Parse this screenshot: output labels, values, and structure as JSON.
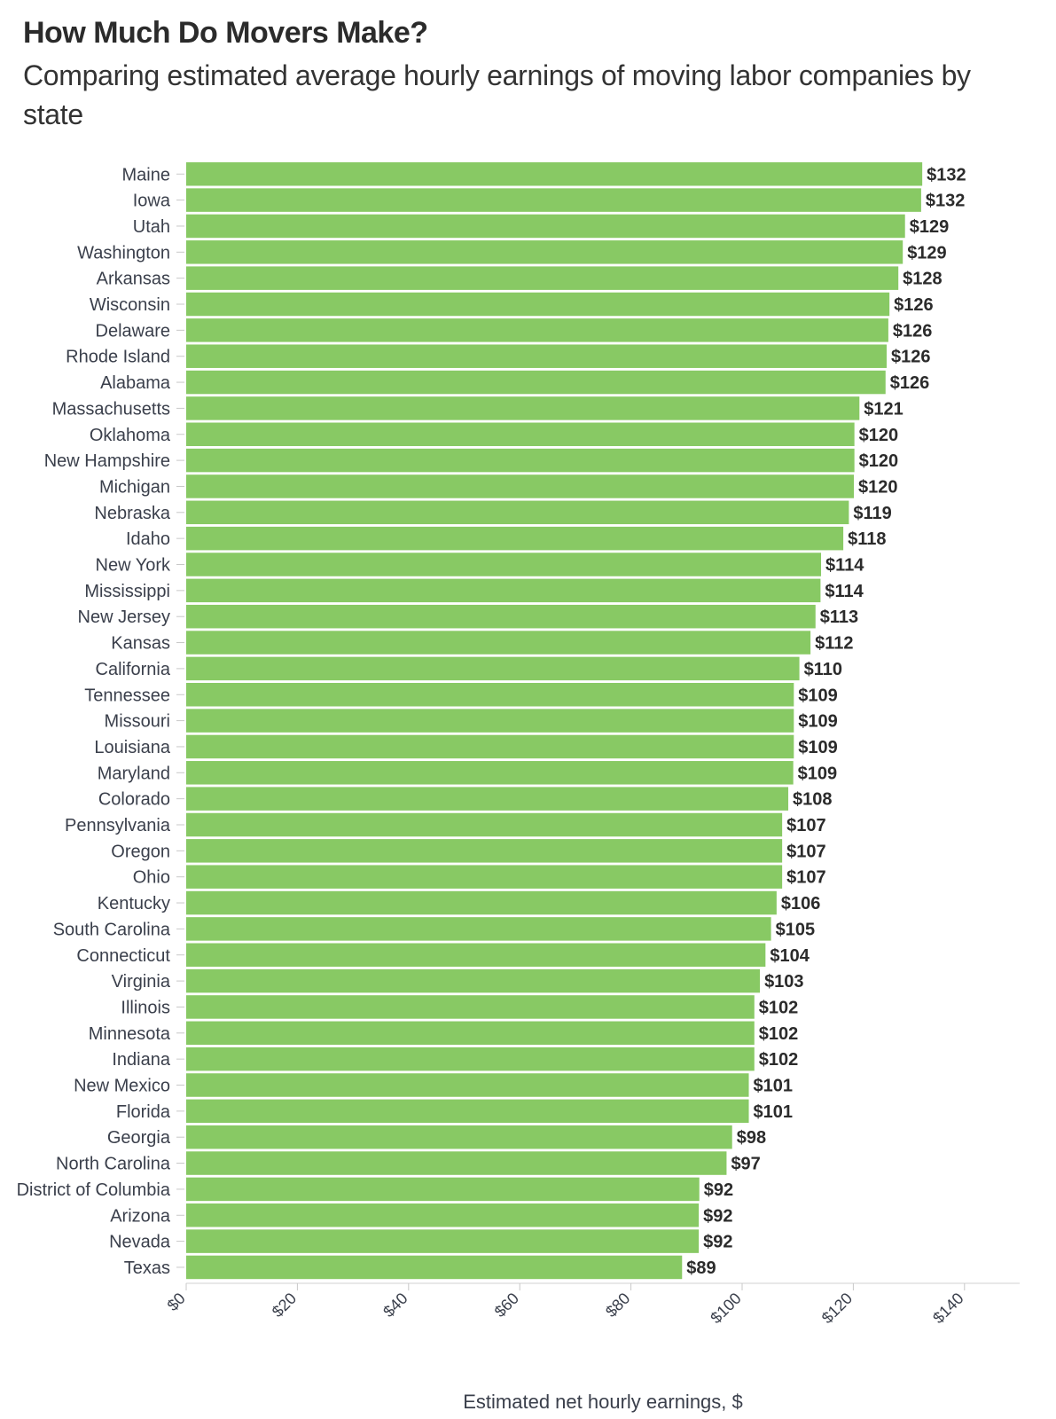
{
  "chart_data": {
    "type": "bar",
    "orientation": "horizontal",
    "title": "How Much Do Movers Make?",
    "subtitle": "Comparing estimated average hourly earnings of moving labor companies by state",
    "xlabel": "Estimated net hourly earnings, $",
    "ylabel": "",
    "xlim": [
      0,
      150
    ],
    "ticks": [
      0,
      20,
      40,
      60,
      80,
      100,
      120,
      140
    ],
    "tick_labels": [
      "$0",
      "$20",
      "$40",
      "$60",
      "$80",
      "$100",
      "$120",
      "$140"
    ],
    "grid": false,
    "bar_color": "#88c964",
    "categories": [
      "Maine",
      "Iowa",
      "Utah",
      "Washington",
      "Arkansas",
      "Wisconsin",
      "Delaware",
      "Rhode Island",
      "Alabama",
      "Massachusetts",
      "Oklahoma",
      "New Hampshire",
      "Michigan",
      "Nebraska",
      "Idaho",
      "New York",
      "Mississippi",
      "New Jersey",
      "Kansas",
      "California",
      "Tennessee",
      "Missouri",
      "Louisiana",
      "Maryland",
      "Colorado",
      "Pennsylvania",
      "Oregon",
      "Ohio",
      "Kentucky",
      "South Carolina",
      "Connecticut",
      "Virginia",
      "Illinois",
      "Minnesota",
      "Indiana",
      "New Mexico",
      "Florida",
      "Georgia",
      "North Carolina",
      "District of Columbia",
      "Arizona",
      "Nevada",
      "Texas"
    ],
    "values": [
      132.4,
      132.2,
      129.3,
      128.9,
      128.1,
      126.5,
      126.3,
      126.0,
      125.8,
      121.1,
      120.2,
      120.2,
      120.1,
      119.2,
      118.2,
      114.2,
      114.1,
      113.2,
      112.3,
      110.3,
      109.3,
      109.3,
      109.3,
      109.2,
      108.3,
      107.2,
      107.2,
      107.2,
      106.2,
      105.2,
      104.2,
      103.2,
      102.2,
      102.2,
      102.2,
      101.2,
      101.2,
      98.2,
      97.2,
      92.3,
      92.2,
      92.2,
      89.2
    ],
    "value_labels": [
      "$132",
      "$132",
      "$129",
      "$129",
      "$128",
      "$126",
      "$126",
      "$126",
      "$126",
      "$121",
      "$120",
      "$120",
      "$120",
      "$119",
      "$118",
      "$114",
      "$114",
      "$113",
      "$112",
      "$110",
      "$109",
      "$109",
      "$109",
      "$109",
      "$108",
      "$107",
      "$107",
      "$107",
      "$106",
      "$105",
      "$104",
      "$103",
      "$102",
      "$102",
      "$102",
      "$101",
      "$101",
      "$98",
      "$97",
      "$92",
      "$92",
      "$92",
      "$89"
    ]
  }
}
